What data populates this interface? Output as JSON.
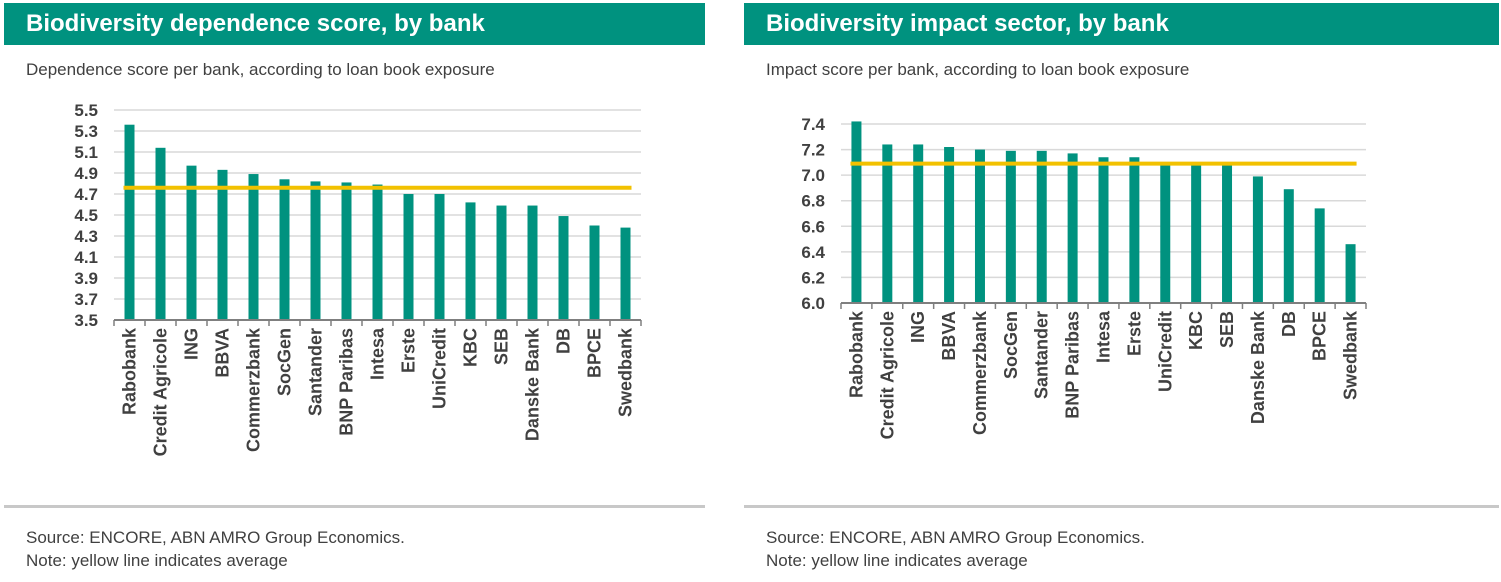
{
  "colors": {
    "header": "#00927f",
    "bar": "#00927f",
    "average": "#f2c100",
    "grid": "#d9d9d9",
    "axis": "#7f7f7f",
    "text": "#404040"
  },
  "panels": [
    {
      "title": "Biodiversity dependence score, by bank",
      "subtitle": "Dependence score per bank, according to loan book exposure",
      "source": "Source: ENCORE, ABN AMRO Group Economics.",
      "note": "Note: yellow line indicates average"
    },
    {
      "title": "Biodiversity impact sector, by bank",
      "subtitle": "Impact score per bank, according to loan book exposure",
      "source": "Source: ENCORE, ABN AMRO Group Economics.",
      "note": "Note: yellow line indicates average"
    }
  ],
  "chart_data": [
    {
      "type": "bar",
      "title": "Biodiversity dependence score, by bank",
      "categories": [
        "Rabobank",
        "Credit Agricole",
        "ING",
        "BBVA",
        "Commerzbank",
        "SocGen",
        "Santander",
        "BNP Paribas",
        "Intesa",
        "Erste",
        "UniCredit",
        "KBC",
        "SEB",
        "Danske Bank",
        "DB",
        "BPCE",
        "Swedbank"
      ],
      "values": [
        5.36,
        5.14,
        4.97,
        4.93,
        4.89,
        4.84,
        4.82,
        4.81,
        4.79,
        4.7,
        4.7,
        4.62,
        4.59,
        4.59,
        4.49,
        4.4,
        4.38
      ],
      "average": 4.76,
      "ylim": [
        3.5,
        5.5
      ],
      "yticks": [
        "3.5",
        "3.7",
        "3.9",
        "4.1",
        "4.3",
        "4.5",
        "4.7",
        "4.9",
        "5.1",
        "5.3",
        "5.5"
      ],
      "grid": true
    },
    {
      "type": "bar",
      "title": "Biodiversity impact sector, by bank",
      "categories": [
        "Rabobank",
        "Credit Agricole",
        "ING",
        "BBVA",
        "Commerzbank",
        "SocGen",
        "Santander",
        "BNP Paribas",
        "Intesa",
        "Erste",
        "UniCredit",
        "KBC",
        "SEB",
        "Danske Bank",
        "DB",
        "BPCE",
        "Swedbank"
      ],
      "values": [
        7.42,
        7.24,
        7.24,
        7.22,
        7.2,
        7.19,
        7.19,
        7.17,
        7.14,
        7.14,
        7.08,
        7.08,
        7.08,
        6.99,
        6.89,
        6.74,
        6.46
      ],
      "average": 7.09,
      "ylim": [
        6.0,
        7.4
      ],
      "yticks": [
        "6.0",
        "6.2",
        "6.4",
        "6.6",
        "6.8",
        "7.0",
        "7.2",
        "7.4"
      ],
      "grid": true
    }
  ]
}
